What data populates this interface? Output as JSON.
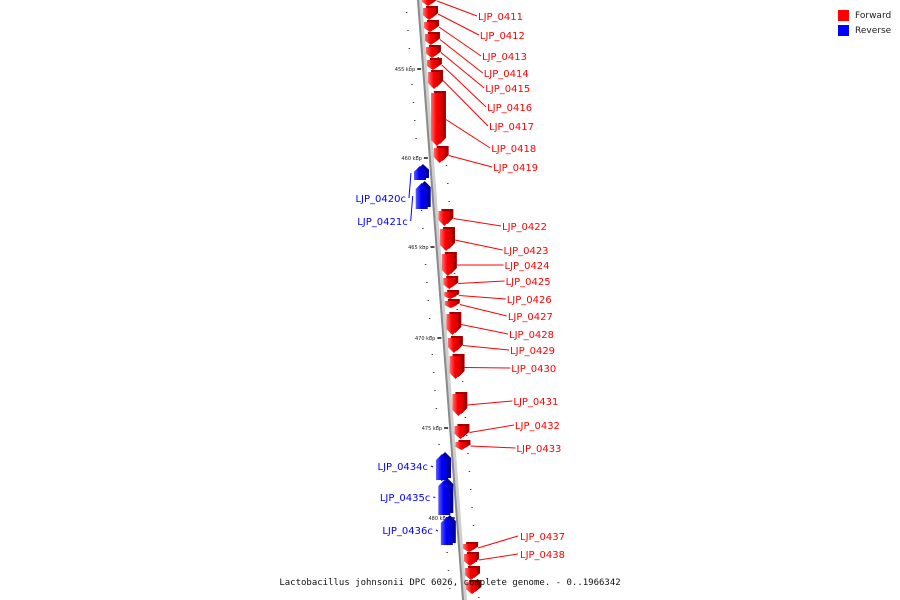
{
  "legend": {
    "forward": {
      "label": "Forward",
      "color": "#ff0000"
    },
    "reverse": {
      "label": "Reverse",
      "color": "#0000ff"
    }
  },
  "caption": "Lactobacillus johnsonii DPC 6026, complete genome. - 0..1966342",
  "ticks": [
    "455 kbp",
    "460 kbp",
    "465 kbp",
    "470 kbp",
    "475 kbp",
    "480 kbp"
  ],
  "genes": [
    {
      "name": "LJP_0411",
      "strand": "forward"
    },
    {
      "name": "LJP_0412",
      "strand": "forward"
    },
    {
      "name": "LJP_0413",
      "strand": "forward"
    },
    {
      "name": "LJP_0414",
      "strand": "forward"
    },
    {
      "name": "LJP_0415",
      "strand": "forward"
    },
    {
      "name": "LJP_0416",
      "strand": "forward"
    },
    {
      "name": "LJP_0417",
      "strand": "forward"
    },
    {
      "name": "LJP_0418",
      "strand": "forward"
    },
    {
      "name": "LJP_0419",
      "strand": "forward"
    },
    {
      "name": "LJP_0420c",
      "strand": "reverse"
    },
    {
      "name": "LJP_0421c",
      "strand": "reverse"
    },
    {
      "name": "LJP_0422",
      "strand": "forward"
    },
    {
      "name": "LJP_0423",
      "strand": "forward"
    },
    {
      "name": "LJP_0424",
      "strand": "forward"
    },
    {
      "name": "LJP_0425",
      "strand": "forward"
    },
    {
      "name": "LJP_0426",
      "strand": "forward"
    },
    {
      "name": "LJP_0427",
      "strand": "forward"
    },
    {
      "name": "LJP_0428",
      "strand": "forward"
    },
    {
      "name": "LJP_0429",
      "strand": "forward"
    },
    {
      "name": "LJP_0430",
      "strand": "forward"
    },
    {
      "name": "LJP_0431",
      "strand": "forward"
    },
    {
      "name": "LJP_0432",
      "strand": "forward"
    },
    {
      "name": "LJP_0433",
      "strand": "forward"
    },
    {
      "name": "LJP_0434c",
      "strand": "reverse"
    },
    {
      "name": "LJP_0435c",
      "strand": "reverse"
    },
    {
      "name": "LJP_0436c",
      "strand": "reverse"
    },
    {
      "name": "LJP_0437",
      "strand": "forward"
    },
    {
      "name": "LJP_0438",
      "strand": "forward"
    }
  ]
}
